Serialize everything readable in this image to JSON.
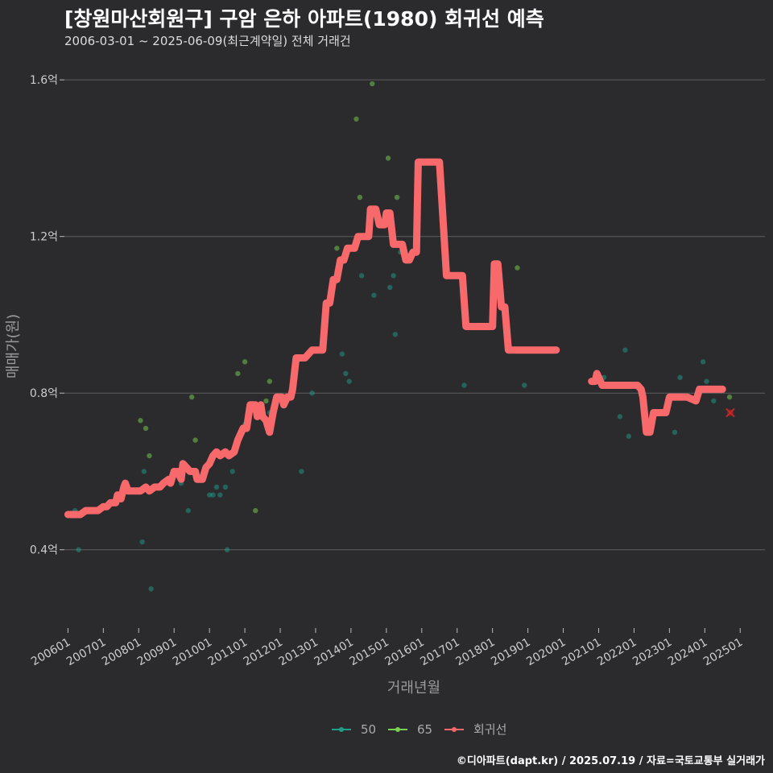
{
  "chart_data": {
    "type": "line",
    "title": "[창원마산회원구] 구암 은하 아파트(1980) 회귀선 예측",
    "subtitle": "2006-03-01 ~ 2025-06-09(최근계약일) 전체 거래건",
    "xlabel": "거래년월",
    "ylabel": "매매가(원)",
    "ylim": [
      0.2,
      1.66
    ],
    "xlim": [
      2005.9,
      2025.7
    ],
    "y_ticks": [
      0.4,
      0.8,
      1.2,
      1.6
    ],
    "y_tick_labels": [
      "0.4억",
      "0.8억",
      "1.2억",
      "1.6억"
    ],
    "x_ticks": [
      2006,
      2007,
      2008,
      2009,
      2010,
      2011,
      2012,
      2013,
      2014,
      2015,
      2016,
      2017,
      2018,
      2019,
      2020,
      2021,
      2022,
      2023,
      2024,
      2025
    ],
    "x_tick_labels": [
      "200601",
      "200701",
      "200801",
      "200901",
      "201001",
      "201101",
      "201201",
      "201301",
      "201401",
      "201501",
      "201601",
      "201701",
      "201801",
      "201901",
      "202001",
      "202101",
      "202201",
      "202301",
      "202401",
      "202501"
    ],
    "legend": [
      {
        "name": "50",
        "color": "#1f9e89"
      },
      {
        "name": "65",
        "color": "#7ad151"
      },
      {
        "name": "회귀선",
        "color": "#f8696b"
      }
    ],
    "legend_position": "bottom",
    "series": [
      {
        "name": "회귀선",
        "segments": [
          [
            [
              2006.0,
              0.49
            ],
            [
              2006.1,
              0.49
            ],
            [
              2006.25,
              0.49
            ],
            [
              2006.35,
              0.49
            ],
            [
              2006.5,
              0.5
            ],
            [
              2006.7,
              0.5
            ],
            [
              2006.85,
              0.5
            ],
            [
              2007.0,
              0.51
            ],
            [
              2007.1,
              0.51
            ],
            [
              2007.2,
              0.52
            ],
            [
              2007.35,
              0.52
            ],
            [
              2007.4,
              0.54
            ],
            [
              2007.5,
              0.53
            ],
            [
              2007.58,
              0.56
            ],
            [
              2007.62,
              0.57
            ],
            [
              2007.7,
              0.55
            ],
            [
              2007.9,
              0.55
            ],
            [
              2008.05,
              0.55
            ],
            [
              2008.2,
              0.56
            ],
            [
              2008.3,
              0.55
            ],
            [
              2008.45,
              0.56
            ],
            [
              2008.6,
              0.56
            ],
            [
              2008.7,
              0.57
            ],
            [
              2008.85,
              0.58
            ],
            [
              2008.9,
              0.57
            ],
            [
              2009.0,
              0.6
            ],
            [
              2009.1,
              0.6
            ],
            [
              2009.2,
              0.58
            ],
            [
              2009.25,
              0.62
            ],
            [
              2009.35,
              0.61
            ],
            [
              2009.45,
              0.6
            ],
            [
              2009.6,
              0.6
            ],
            [
              2009.65,
              0.58
            ],
            [
              2009.8,
              0.58
            ],
            [
              2009.9,
              0.61
            ],
            [
              2010.0,
              0.62
            ],
            [
              2010.1,
              0.64
            ],
            [
              2010.2,
              0.65
            ],
            [
              2010.3,
              0.64
            ],
            [
              2010.45,
              0.65
            ],
            [
              2010.55,
              0.64
            ],
            [
              2010.7,
              0.65
            ],
            [
              2010.8,
              0.68
            ],
            [
              2010.95,
              0.71
            ],
            [
              2011.05,
              0.71
            ],
            [
              2011.15,
              0.77
            ],
            [
              2011.3,
              0.77
            ],
            [
              2011.35,
              0.74
            ],
            [
              2011.45,
              0.77
            ],
            [
              2011.5,
              0.74
            ],
            [
              2011.6,
              0.73
            ],
            [
              2011.7,
              0.7
            ],
            [
              2011.8,
              0.75
            ],
            [
              2011.9,
              0.79
            ],
            [
              2012.05,
              0.79
            ],
            [
              2012.1,
              0.77
            ],
            [
              2012.2,
              0.79
            ],
            [
              2012.3,
              0.79
            ],
            [
              2012.35,
              0.81
            ],
            [
              2012.45,
              0.89
            ],
            [
              2012.55,
              0.89
            ],
            [
              2012.7,
              0.89
            ],
            [
              2012.8,
              0.9
            ],
            [
              2012.9,
              0.91
            ],
            [
              2013.1,
              0.91
            ],
            [
              2013.2,
              0.91
            ],
            [
              2013.3,
              1.03
            ],
            [
              2013.4,
              1.03
            ],
            [
              2013.5,
              1.09
            ],
            [
              2013.6,
              1.09
            ],
            [
              2013.7,
              1.14
            ],
            [
              2013.8,
              1.14
            ],
            [
              2013.9,
              1.17
            ],
            [
              2014.1,
              1.17
            ],
            [
              2014.2,
              1.2
            ],
            [
              2014.3,
              1.2
            ],
            [
              2014.4,
              1.2
            ],
            [
              2014.5,
              1.2
            ],
            [
              2014.55,
              1.27
            ],
            [
              2014.7,
              1.27
            ],
            [
              2014.8,
              1.23
            ],
            [
              2014.95,
              1.23
            ],
            [
              2015.0,
              1.26
            ],
            [
              2015.1,
              1.26
            ],
            [
              2015.2,
              1.18
            ],
            [
              2015.3,
              1.18
            ],
            [
              2015.45,
              1.18
            ],
            [
              2015.55,
              1.14
            ],
            [
              2015.65,
              1.14
            ],
            [
              2015.75,
              1.16
            ],
            [
              2015.85,
              1.16
            ],
            [
              2015.9,
              1.39
            ],
            [
              2016.2,
              1.39
            ],
            [
              2016.45,
              1.39
            ],
            [
              2016.5,
              1.39
            ],
            [
              2016.7,
              1.1
            ],
            [
              2016.9,
              1.1
            ],
            [
              2017.05,
              1.1
            ],
            [
              2017.15,
              1.1
            ],
            [
              2017.25,
              0.97
            ],
            [
              2017.5,
              0.97
            ],
            [
              2017.85,
              0.97
            ],
            [
              2018.0,
              0.97
            ],
            [
              2018.05,
              1.13
            ],
            [
              2018.15,
              1.13
            ],
            [
              2018.25,
              1.02
            ],
            [
              2018.35,
              1.02
            ],
            [
              2018.45,
              0.91
            ],
            [
              2018.7,
              0.91
            ],
            [
              2019.0,
              0.91
            ],
            [
              2019.5,
              0.91
            ],
            [
              2019.8,
              0.91
            ]
          ],
          [
            [
              2020.8,
              0.83
            ],
            [
              2020.9,
              0.83
            ],
            [
              2020.95,
              0.85
            ],
            [
              2021.1,
              0.82
            ],
            [
              2021.3,
              0.82
            ],
            [
              2021.6,
              0.82
            ],
            [
              2021.9,
              0.82
            ],
            [
              2022.1,
              0.82
            ],
            [
              2022.2,
              0.81
            ],
            [
              2022.25,
              0.79
            ],
            [
              2022.35,
              0.7
            ],
            [
              2022.45,
              0.7
            ],
            [
              2022.55,
              0.75
            ],
            [
              2022.75,
              0.75
            ],
            [
              2022.9,
              0.75
            ],
            [
              2023.0,
              0.79
            ],
            [
              2023.2,
              0.79
            ],
            [
              2023.5,
              0.79
            ],
            [
              2023.75,
              0.78
            ],
            [
              2023.85,
              0.81
            ],
            [
              2024.0,
              0.81
            ],
            [
              2024.2,
              0.81
            ],
            [
              2024.4,
              0.81
            ],
            [
              2024.5,
              0.81
            ]
          ]
        ]
      },
      {
        "name": "50",
        "points": [
          [
            2006.2,
            0.5
          ],
          [
            2006.3,
            0.4
          ],
          [
            2007.9,
            0.55
          ],
          [
            2008.1,
            0.42
          ],
          [
            2008.15,
            0.6
          ],
          [
            2008.35,
            0.3
          ],
          [
            2009.2,
            0.57
          ],
          [
            2009.4,
            0.5
          ],
          [
            2009.7,
            0.58
          ],
          [
            2010.0,
            0.54
          ],
          [
            2010.1,
            0.54
          ],
          [
            2010.2,
            0.56
          ],
          [
            2010.3,
            0.54
          ],
          [
            2010.45,
            0.56
          ],
          [
            2010.5,
            0.4
          ],
          [
            2010.65,
            0.6
          ],
          [
            2011.0,
            0.72
          ],
          [
            2011.4,
            0.76
          ],
          [
            2011.7,
            0.75
          ],
          [
            2012.6,
            0.6
          ],
          [
            2012.9,
            0.8
          ],
          [
            2013.2,
            0.91
          ],
          [
            2013.75,
            0.9
          ],
          [
            2013.85,
            0.85
          ],
          [
            2013.95,
            0.83
          ],
          [
            2014.3,
            1.1
          ],
          [
            2014.65,
            1.05
          ],
          [
            2015.1,
            1.07
          ],
          [
            2015.2,
            1.1
          ],
          [
            2015.25,
            0.95
          ],
          [
            2015.4,
            1.16
          ],
          [
            2017.2,
            0.82
          ],
          [
            2018.9,
            0.82
          ],
          [
            2021.05,
            0.84
          ],
          [
            2021.15,
            0.84
          ],
          [
            2021.6,
            0.74
          ],
          [
            2021.75,
            0.91
          ],
          [
            2021.85,
            0.69
          ],
          [
            2023.15,
            0.7
          ],
          [
            2023.3,
            0.84
          ],
          [
            2023.95,
            0.88
          ],
          [
            2024.05,
            0.83
          ],
          [
            2024.25,
            0.78
          ]
        ]
      },
      {
        "name": "65",
        "points": [
          [
            2008.05,
            0.73
          ],
          [
            2008.2,
            0.71
          ],
          [
            2008.3,
            0.64
          ],
          [
            2009.5,
            0.79
          ],
          [
            2009.6,
            0.68
          ],
          [
            2010.8,
            0.85
          ],
          [
            2011.0,
            0.88
          ],
          [
            2011.3,
            0.5
          ],
          [
            2011.6,
            0.78
          ],
          [
            2011.7,
            0.83
          ],
          [
            2013.6,
            1.17
          ],
          [
            2014.15,
            1.5
          ],
          [
            2014.25,
            1.3
          ],
          [
            2014.6,
            1.59
          ],
          [
            2015.05,
            1.4
          ],
          [
            2015.3,
            1.3
          ],
          [
            2018.7,
            1.12
          ],
          [
            2024.7,
            0.79
          ]
        ]
      }
    ],
    "forecast_marker": [
      2024.72,
      0.75
    ]
  },
  "footer": {
    "credit": "©디아파트(dapt.kr) / 2025.07.19 / 자료=국토교통부 실거래가"
  }
}
